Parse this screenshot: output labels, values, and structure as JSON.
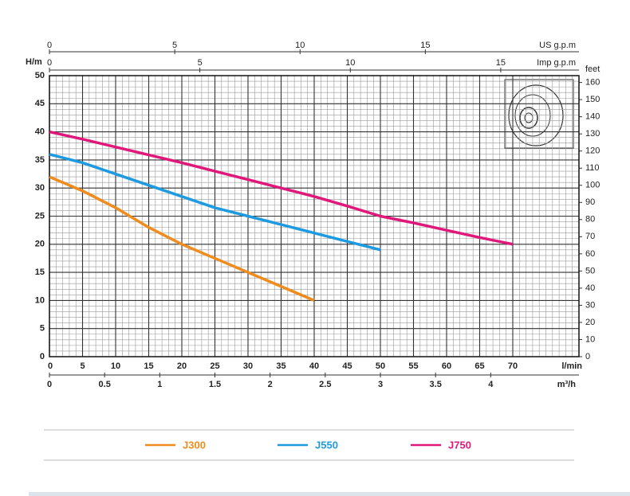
{
  "chart_data": {
    "type": "line",
    "x_label": "l/min",
    "x": [
      0,
      5,
      10,
      15,
      20,
      25,
      30,
      35,
      40,
      45,
      50,
      55,
      60,
      65,
      70
    ],
    "xlim": [
      0,
      80
    ],
    "xticks": [
      0,
      5,
      10,
      15,
      20,
      25,
      30,
      35,
      40,
      45,
      50,
      55,
      60,
      65,
      70
    ],
    "y_label": "H/m",
    "ylim": [
      0,
      50
    ],
    "yticks": [
      0,
      5,
      10,
      15,
      20,
      25,
      30,
      35,
      40,
      45,
      50
    ],
    "y2_label": "feet",
    "y2lim": [
      0,
      164
    ],
    "y2ticks": [
      0,
      10,
      20,
      30,
      40,
      50,
      60,
      70,
      80,
      90,
      100,
      110,
      120,
      130,
      140,
      150,
      160
    ],
    "extra_x_axes": [
      {
        "label": "m³/h",
        "position": "bottom",
        "lim": [
          0,
          4.8
        ],
        "ticks": [
          0,
          0.5,
          1,
          1.5,
          2,
          2.5,
          3,
          3.5,
          4
        ]
      },
      {
        "label": "US g.p.m",
        "position": "top",
        "lim": [
          0,
          21.13
        ],
        "ticks": [
          0,
          5,
          10,
          15
        ]
      },
      {
        "label": "Imp g.p.m",
        "position": "top",
        "lim": [
          0,
          17.6
        ],
        "ticks": [
          0,
          5,
          10,
          15
        ]
      }
    ],
    "grid": true,
    "series": [
      {
        "name": "J300",
        "color": "#f08c1e",
        "values": [
          32,
          29.5,
          26.5,
          23,
          20,
          17.5,
          15,
          12.5,
          10,
          null,
          null,
          null,
          null,
          null,
          null
        ]
      },
      {
        "name": "J550",
        "color": "#1e9be0",
        "values": [
          36,
          34.5,
          32.5,
          30.5,
          28.5,
          26.5,
          25,
          23.5,
          22,
          20.5,
          19,
          null,
          null,
          null,
          null
        ]
      },
      {
        "name": "J750",
        "color": "#e0187a",
        "values": [
          40,
          38.7,
          37.3,
          35.9,
          34.5,
          33,
          31.5,
          30,
          28.5,
          26.8,
          25,
          23.8,
          22.5,
          21.2,
          20
        ]
      }
    ]
  }
}
